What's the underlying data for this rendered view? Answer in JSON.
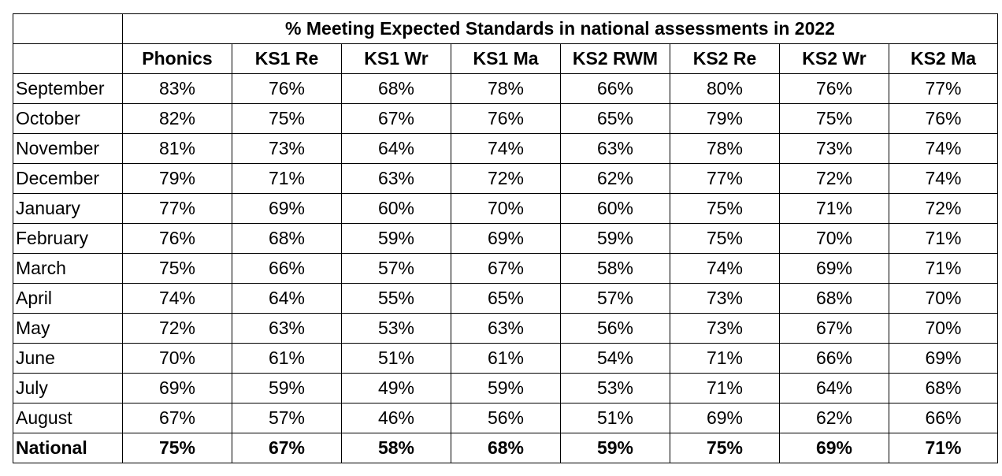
{
  "chart_data": {
    "type": "table",
    "title": "% Meeting Expected Standards in national assessments in 2022",
    "columns": [
      "Phonics",
      "KS1 Re",
      "KS1 Wr",
      "KS1 Ma",
      "KS2 RWM",
      "KS2 Re",
      "KS2 Wr",
      "KS2 Ma"
    ],
    "rows": [
      {
        "label": "September",
        "values": [
          "83%",
          "76%",
          "68%",
          "78%",
          "66%",
          "80%",
          "76%",
          "77%"
        ]
      },
      {
        "label": "October",
        "values": [
          "82%",
          "75%",
          "67%",
          "76%",
          "65%",
          "79%",
          "75%",
          "76%"
        ]
      },
      {
        "label": "November",
        "values": [
          "81%",
          "73%",
          "64%",
          "74%",
          "63%",
          "78%",
          "73%",
          "74%"
        ]
      },
      {
        "label": "December",
        "values": [
          "79%",
          "71%",
          "63%",
          "72%",
          "62%",
          "77%",
          "72%",
          "74%"
        ]
      },
      {
        "label": "January",
        "values": [
          "77%",
          "69%",
          "60%",
          "70%",
          "60%",
          "75%",
          "71%",
          "72%"
        ]
      },
      {
        "label": "February",
        "values": [
          "76%",
          "68%",
          "59%",
          "69%",
          "59%",
          "75%",
          "70%",
          "71%"
        ]
      },
      {
        "label": "March",
        "values": [
          "75%",
          "66%",
          "57%",
          "67%",
          "58%",
          "74%",
          "69%",
          "71%"
        ]
      },
      {
        "label": "April",
        "values": [
          "74%",
          "64%",
          "55%",
          "65%",
          "57%",
          "73%",
          "68%",
          "70%"
        ]
      },
      {
        "label": "May",
        "values": [
          "72%",
          "63%",
          "53%",
          "63%",
          "56%",
          "73%",
          "67%",
          "70%"
        ]
      },
      {
        "label": "June",
        "values": [
          "70%",
          "61%",
          "51%",
          "61%",
          "54%",
          "71%",
          "66%",
          "69%"
        ]
      },
      {
        "label": "July",
        "values": [
          "69%",
          "59%",
          "49%",
          "59%",
          "53%",
          "71%",
          "64%",
          "68%"
        ]
      },
      {
        "label": "August",
        "values": [
          "67%",
          "57%",
          "46%",
          "56%",
          "51%",
          "69%",
          "62%",
          "66%"
        ]
      }
    ],
    "national": {
      "label": "National",
      "values": [
        "75%",
        "67%",
        "58%",
        "68%",
        "59%",
        "75%",
        "69%",
        "71%"
      ]
    }
  }
}
